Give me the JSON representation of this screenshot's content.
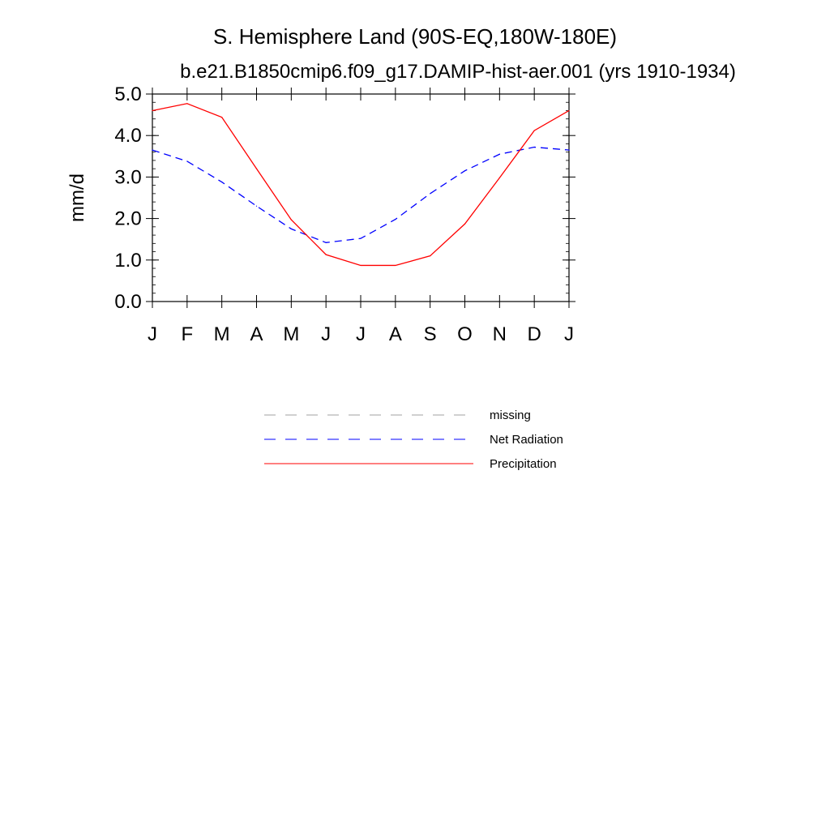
{
  "chart_data": {
    "type": "line",
    "title": "S. Hemisphere Land (90S-EQ,180W-180E)",
    "subtitle": "b.e21.B1850cmip6.f09_g17.DAMIP-hist-aer.001 (yrs 1910-1934)",
    "ylabel": "mm/d",
    "xlabel": "",
    "categories": [
      "J",
      "F",
      "M",
      "A",
      "M",
      "J",
      "J",
      "A",
      "S",
      "O",
      "N",
      "D",
      "J"
    ],
    "ylim": [
      0,
      5
    ],
    "yticks": [
      "0.0",
      "1.0",
      "2.0",
      "3.0",
      "4.0",
      "5.0"
    ],
    "grid": false,
    "legend_placement": "bottom-center",
    "series": [
      {
        "name": "Net Radiation",
        "color": "#0000ff",
        "dash": "dashed",
        "values": [
          3.65,
          3.38,
          2.88,
          2.3,
          1.75,
          1.42,
          1.52,
          1.98,
          2.6,
          3.15,
          3.55,
          3.72,
          3.65
        ]
      },
      {
        "name": "Precipitation",
        "color": "#ff0000",
        "dash": "solid",
        "values": [
          4.6,
          4.77,
          4.44,
          3.2,
          1.97,
          1.13,
          0.87,
          0.87,
          1.1,
          1.87,
          2.98,
          4.12,
          4.6
        ]
      }
    ],
    "legend": [
      {
        "label": "missing",
        "color": "#a0a0a0",
        "dash": "dashed"
      },
      {
        "label": "Net Radiation",
        "color": "#0000ff",
        "dash": "dashed"
      },
      {
        "label": "Precipitation",
        "color": "#ff0000",
        "dash": "solid"
      }
    ]
  }
}
